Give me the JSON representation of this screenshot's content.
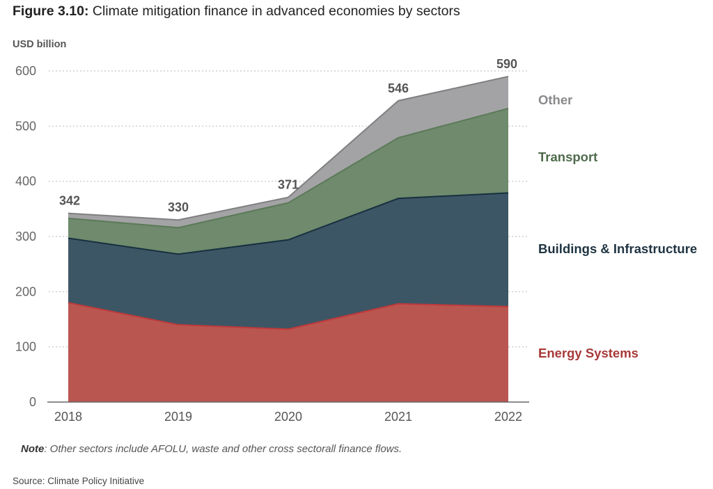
{
  "figure": {
    "label": "Figure 3.10:",
    "title": "Climate mitigation finance in advanced economies by sectors",
    "unit": "USD billion",
    "note_label": "Note",
    "note_text": ": Other sectors include AFOLU, waste and other cross sectorall finance flows.",
    "source": "Source: Climate Policy Initiative"
  },
  "chart_data": {
    "type": "area",
    "stacked": true,
    "title": "Climate mitigation finance in advanced economies by sectors",
    "xlabel": "",
    "ylabel": "USD billion",
    "ylim": [
      0,
      600
    ],
    "yticks": [
      0,
      100,
      200,
      300,
      400,
      500,
      600
    ],
    "grid": "horizontal dotted",
    "legend": "right (inline labels)",
    "categories": [
      "2018",
      "2019",
      "2020",
      "2021",
      "2022"
    ],
    "series": [
      {
        "name": "Energy Systems",
        "color": "#b95650",
        "label_color": "#a83a3a",
        "values": [
          180,
          140,
          132,
          178,
          173
        ]
      },
      {
        "name": "Buildings & Infrastructure",
        "color": "#3d5665",
        "label_color": "#1f3442",
        "values": [
          117,
          128,
          162,
          191,
          206
        ]
      },
      {
        "name": "Transport",
        "color": "#6f8a6c",
        "label_color": "#4f6b4c",
        "values": [
          36,
          48,
          67,
          110,
          153
        ]
      },
      {
        "name": "Other",
        "color": "#a3a3a5",
        "label_color": "#8a8a8c",
        "values": [
          9,
          14,
          10,
          67,
          58
        ]
      }
    ],
    "totals": [
      342,
      330,
      371,
      546,
      590
    ]
  }
}
